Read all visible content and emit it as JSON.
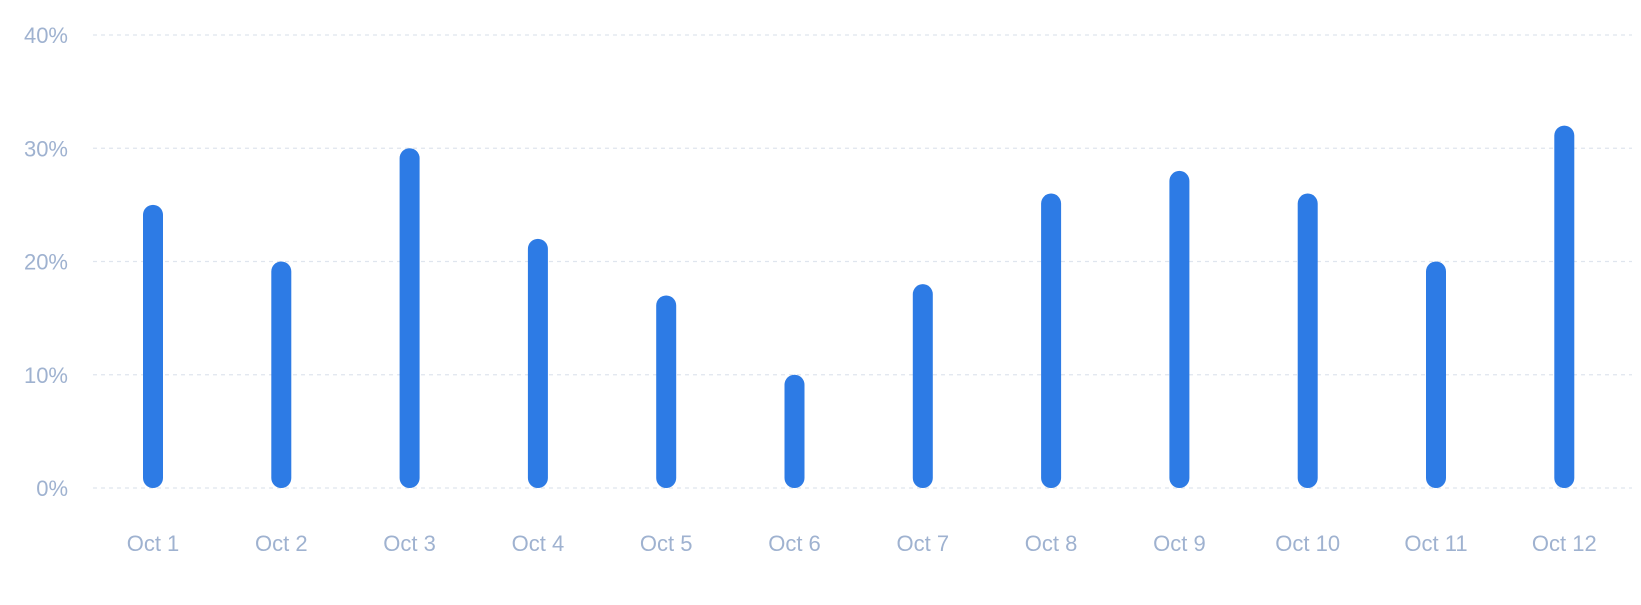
{
  "chart_data": {
    "type": "bar",
    "title": "",
    "xlabel": "",
    "ylabel": "",
    "categories": [
      "Oct 1",
      "Oct 2",
      "Oct 3",
      "Oct 4",
      "Oct 5",
      "Oct 6",
      "Oct 7",
      "Oct 8",
      "Oct 9",
      "Oct 10",
      "Oct 11",
      "Oct 12"
    ],
    "values": [
      25,
      20,
      30,
      22,
      17,
      10,
      18,
      26,
      28,
      26,
      20,
      32
    ],
    "ylim": [
      0,
      40
    ],
    "yticks": [
      0,
      10,
      20,
      30,
      40
    ],
    "ytick_labels": [
      "0%",
      "10%",
      "20%",
      "30%",
      "40%"
    ],
    "grid": true,
    "legend": "none"
  },
  "colors": {
    "bar": "#2d7be5",
    "tick_label": "#9fb2d0",
    "grid": "#dfe5ee"
  }
}
